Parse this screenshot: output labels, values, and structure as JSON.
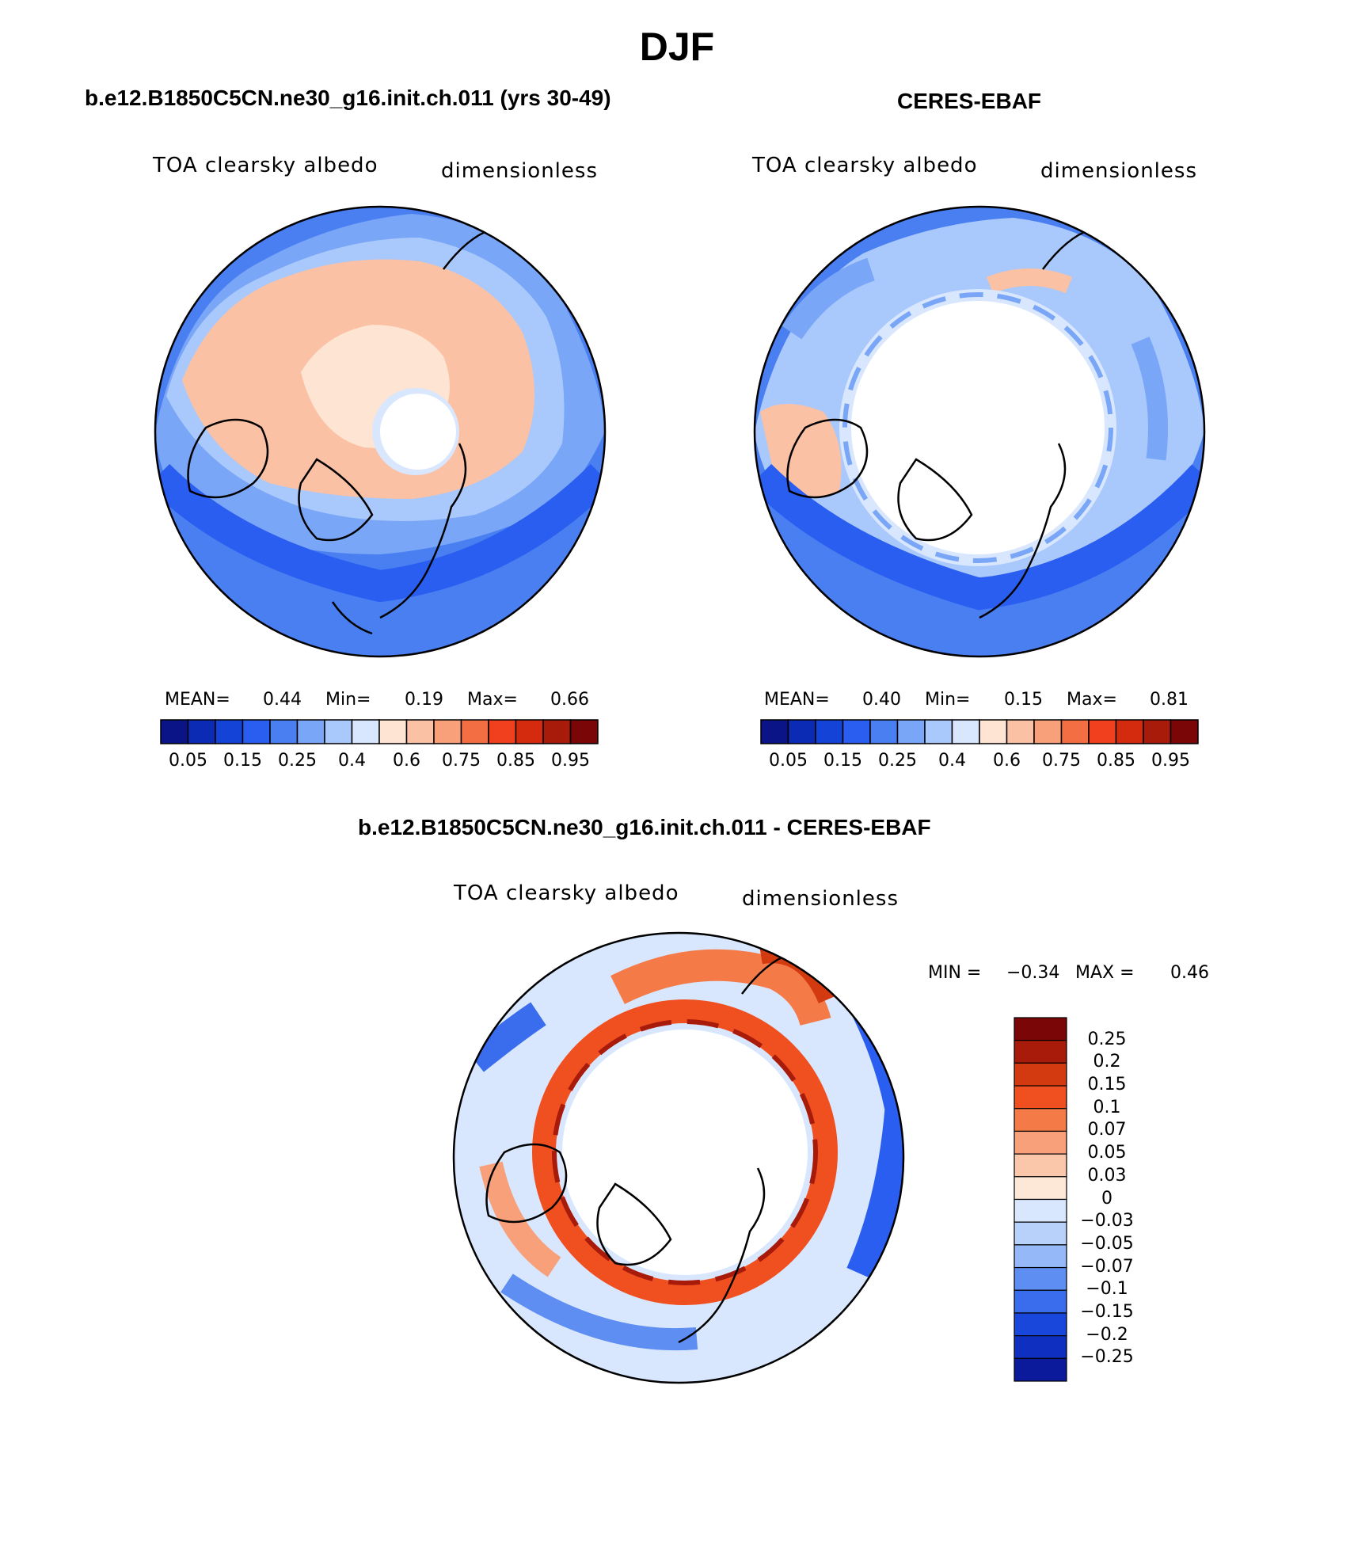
{
  "title": "DJF",
  "panels": [
    {
      "title": "b.e12.B1850C5CN.ne30_g16.init.ch.011 (yrs 30-49)",
      "variable": "TOA clearsky albedo",
      "units": "dimensionless",
      "stats": {
        "mean_label": "MEAN=",
        "mean": "0.44",
        "min_label": "Min=",
        "min": "0.19",
        "max_label": "Max=",
        "max": "0.66"
      }
    },
    {
      "title": "CERES-EBAF",
      "variable": "TOA clearsky albedo",
      "units": "dimensionless",
      "stats": {
        "mean_label": "MEAN=",
        "mean": "0.40",
        "min_label": "Min=",
        "min": "0.15",
        "max_label": "Max=",
        "max": "0.81"
      }
    },
    {
      "title": "b.e12.B1850C5CN.ne30_g16.init.ch.011 - CERES-EBAF",
      "variable": "TOA clearsky albedo",
      "units": "dimensionless",
      "stats": {
        "min_label": "MIN =",
        "min": "−0.34",
        "max_label": "MAX =",
        "max": "0.46"
      }
    }
  ],
  "colorbars": {
    "absolute": {
      "colors": [
        "#0b1486",
        "#0c2bb4",
        "#1443d8",
        "#2a5ef0",
        "#4a7ff2",
        "#7aa6f7",
        "#a9c8fb",
        "#d8e7fd",
        "#fde4d3",
        "#fbc1a4",
        "#f8a07a",
        "#f46e44",
        "#f0401e",
        "#d42a0e",
        "#a81a0a",
        "#7a0607"
      ],
      "ticks": [
        "0.05",
        "0.15",
        "0.25",
        "0.4",
        "0.6",
        "0.75",
        "0.85",
        "0.95"
      ]
    },
    "difference": {
      "colors": [
        "#7a0607",
        "#a81a0a",
        "#d33a10",
        "#f05020",
        "#f47a48",
        "#f8a07a",
        "#fbc7aa",
        "#fde8d8",
        "#d8e7fd",
        "#b7d1fb",
        "#94b8f8",
        "#5e8ef2",
        "#3a6ded",
        "#1a47db",
        "#0f2fc0",
        "#0b1a9a"
      ],
      "ticks": [
        "0.25",
        "0.2",
        "0.15",
        "0.1",
        "0.07",
        "0.05",
        "0.03",
        "0",
        "−0.03",
        "−0.05",
        "−0.07",
        "−0.1",
        "−0.15",
        "−0.2",
        "−0.25"
      ]
    }
  }
}
